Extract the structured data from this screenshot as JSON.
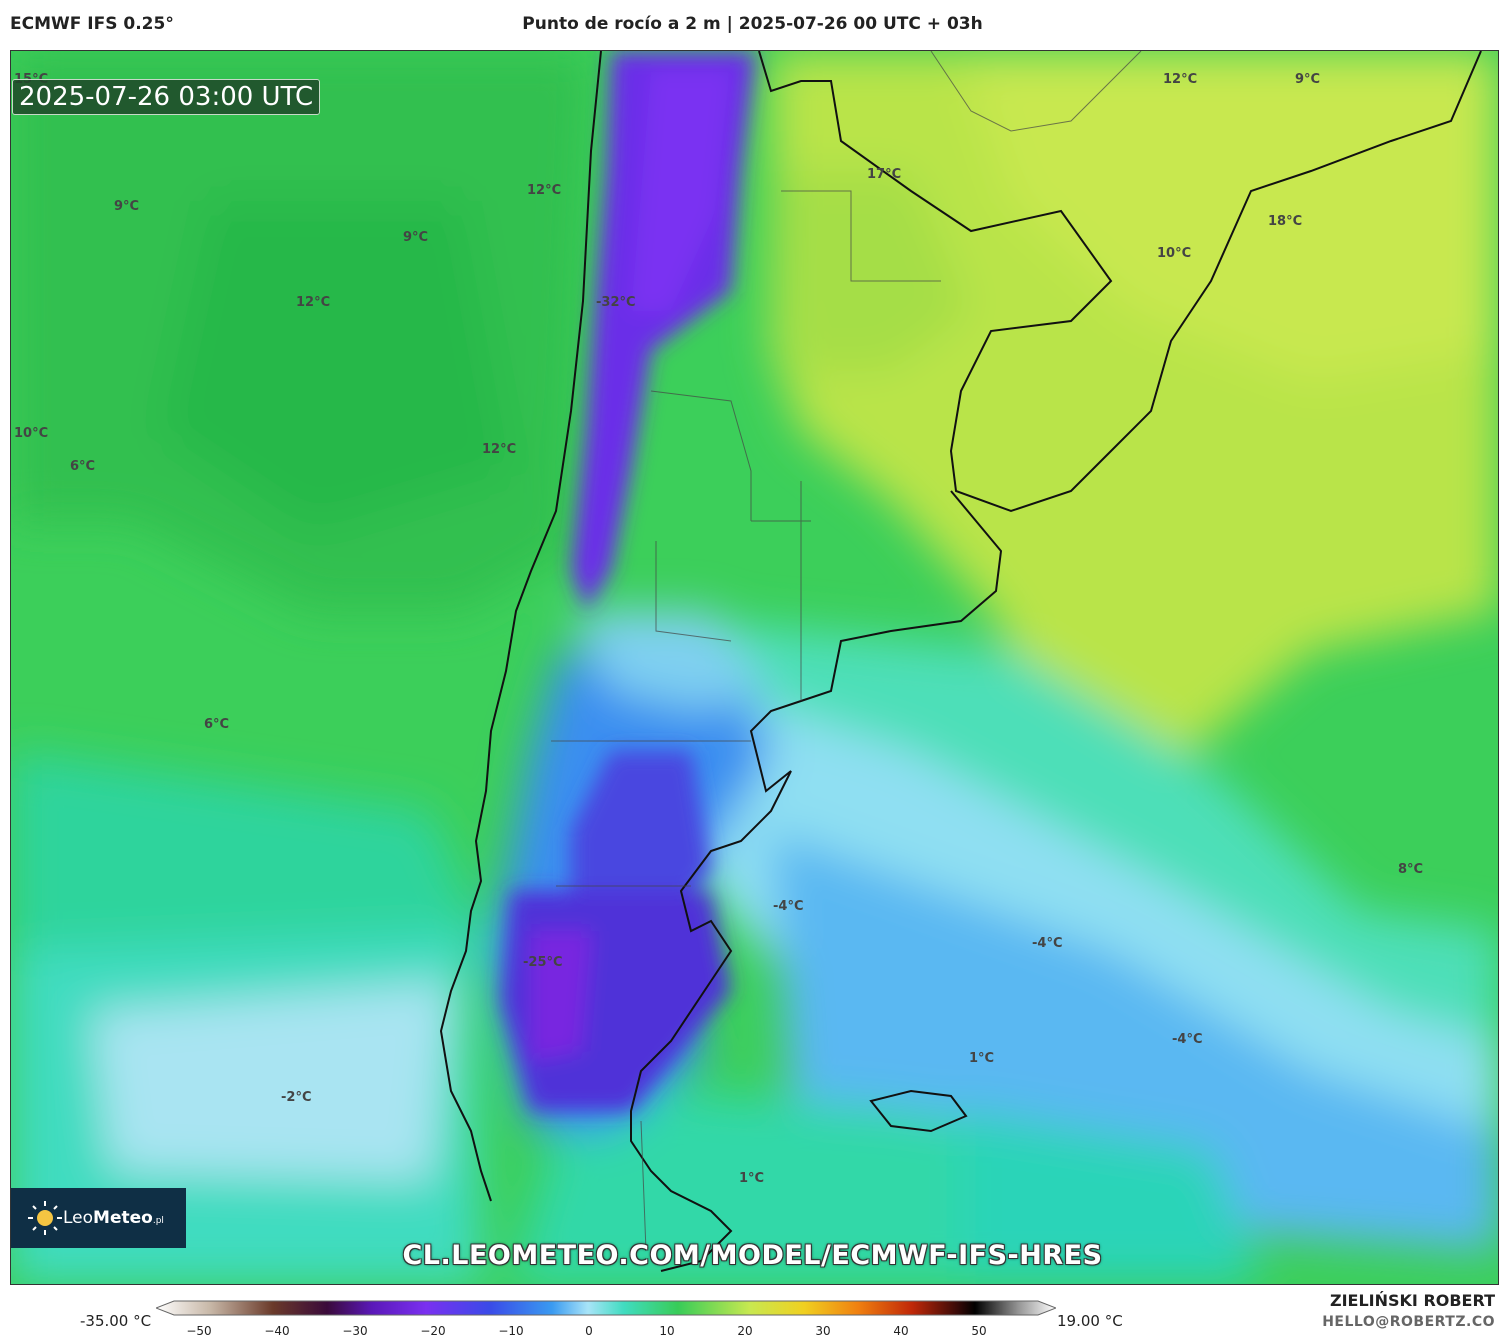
{
  "header": {
    "model": "ECMWF IFS 0.25°",
    "title": "Punto de rocío a 2 m | 2025-07-26 00 UTC + 03h"
  },
  "timestamp": "2025-07-26 03:00 UTC",
  "watermark_url": "CL.LEOMETEO.COM/MODEL/ECMWF-IFS-HRES",
  "logo": {
    "prefix": "Leo",
    "suffix": "Meteo",
    "small": ".pl"
  },
  "map_labels": [
    "15°C",
    "12°C",
    "9°C",
    "9°C",
    "9°C",
    "12°C",
    "12°C",
    "17°C",
    "18°C",
    "10°C",
    "-32°C",
    "10°C",
    "6°C",
    "12°C",
    "6°C",
    "8°C",
    "-4°C",
    "-4°C",
    "-25°C",
    "-4°C",
    "1°C",
    "-2°C",
    "1°C"
  ],
  "colorbar": {
    "min_label": "-35.00 °C",
    "max_label": "19.00 °C",
    "ticks": [
      "−50",
      "−40",
      "−30",
      "−20",
      "−10",
      "0",
      "10",
      "20",
      "30",
      "40",
      "50"
    ]
  },
  "credits": {
    "author": "ZIELIŃSKI ROBERT",
    "contact": "HELLO@ROBERTZ.CO"
  }
}
